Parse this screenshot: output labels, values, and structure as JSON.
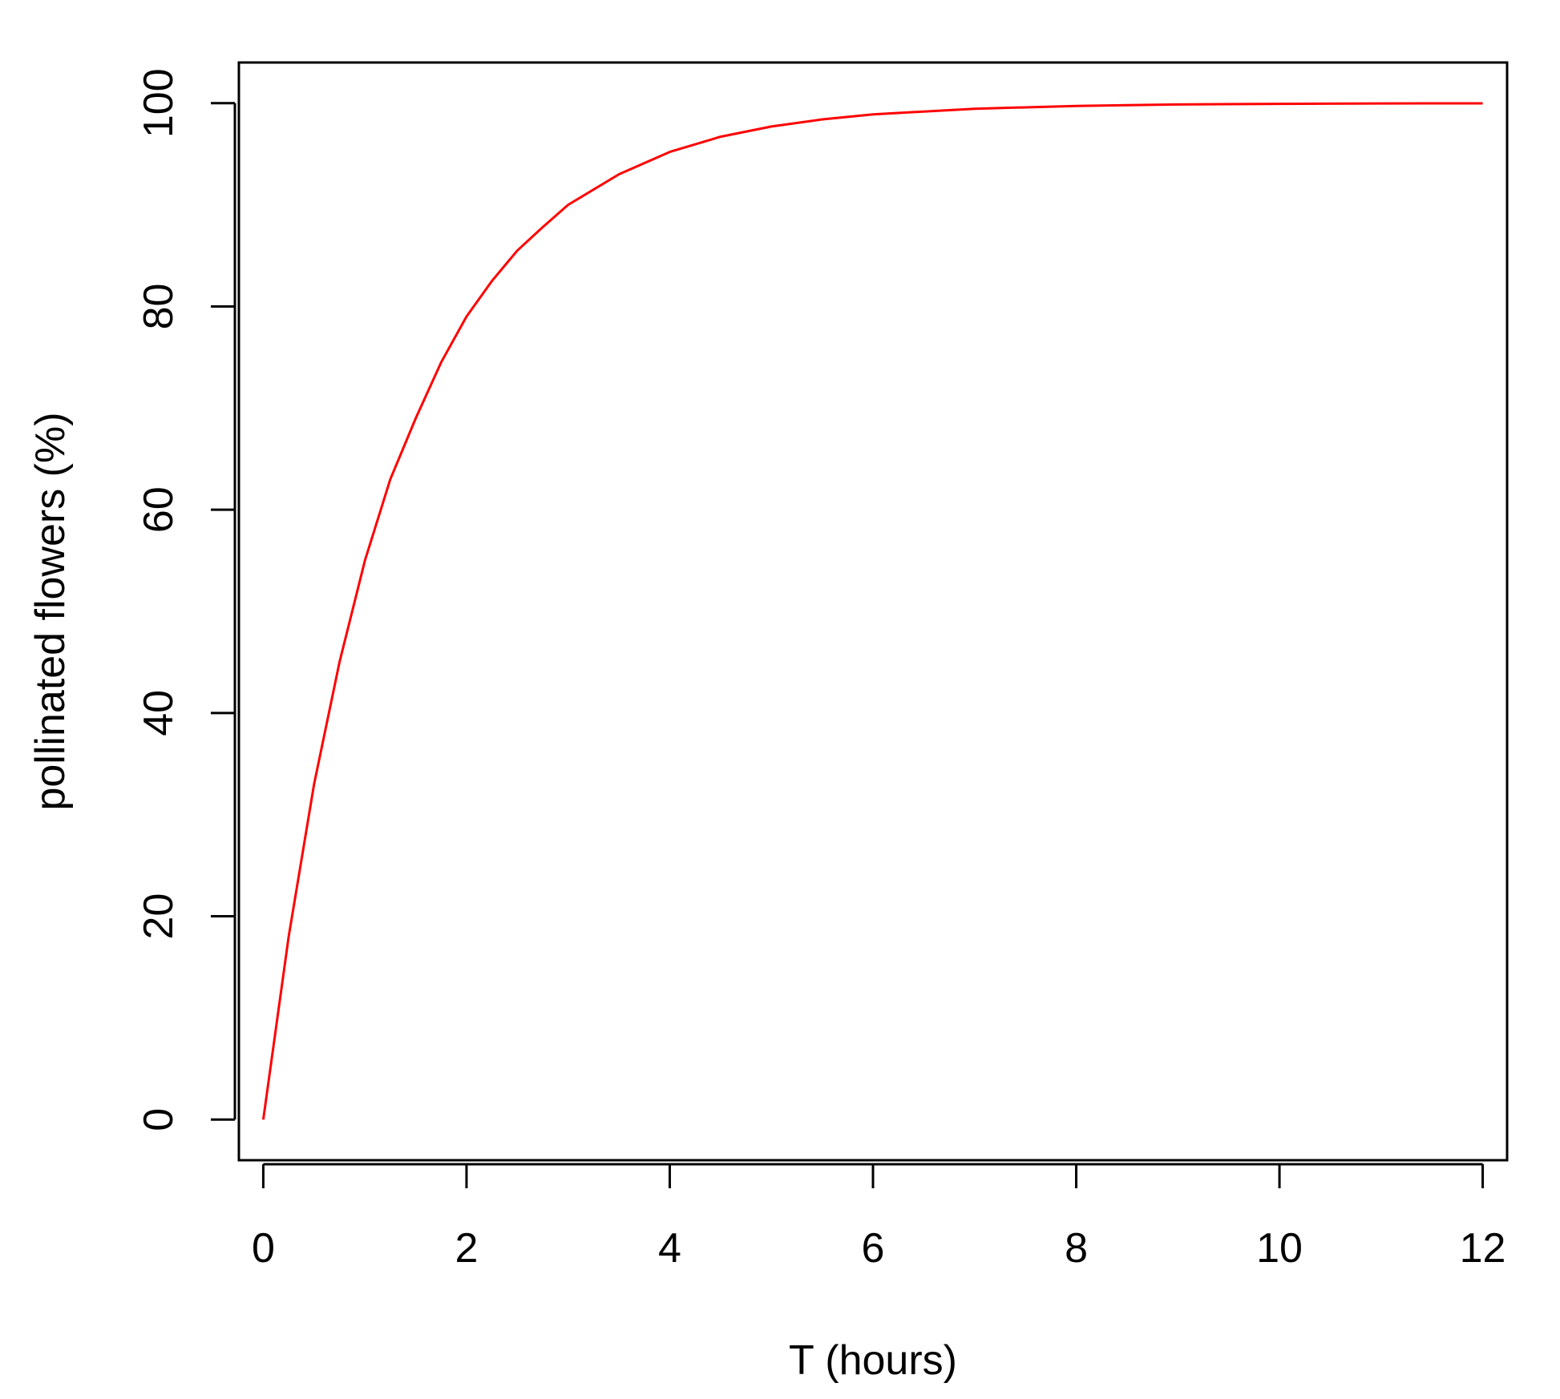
{
  "chart_data": {
    "type": "line",
    "title": "",
    "xlabel": "T (hours)",
    "ylabel": "pollinated flowers (%)",
    "xlim": [
      -0.24,
      12.24
    ],
    "ylim": [
      -4,
      104
    ],
    "xticks": [
      0,
      2,
      4,
      6,
      8,
      10,
      12
    ],
    "yticks": [
      0,
      20,
      40,
      60,
      80,
      100
    ],
    "xtick_labels": [
      "0",
      "2",
      "4",
      "6",
      "8",
      "10",
      "12"
    ],
    "ytick_labels": [
      "0",
      "20",
      "40",
      "60",
      "80",
      "100"
    ],
    "grid": false,
    "legend": "none",
    "series": [
      {
        "color": "#ff0000",
        "x": [
          0,
          0.25,
          0.5,
          0.75,
          1,
          1.25,
          1.5,
          1.75,
          2,
          2.25,
          2.5,
          2.75,
          3,
          3.5,
          4,
          4.5,
          5,
          5.5,
          6,
          7,
          8,
          9,
          10,
          11,
          12
        ],
        "y": [
          0,
          18,
          33,
          45,
          55,
          63,
          69,
          74.5,
          79,
          82.5,
          85.5,
          87.8,
          90,
          93,
          95.2,
          96.7,
          97.7,
          98.4,
          98.9,
          99.45,
          99.73,
          99.87,
          99.93,
          99.97,
          99.98
        ]
      }
    ]
  }
}
